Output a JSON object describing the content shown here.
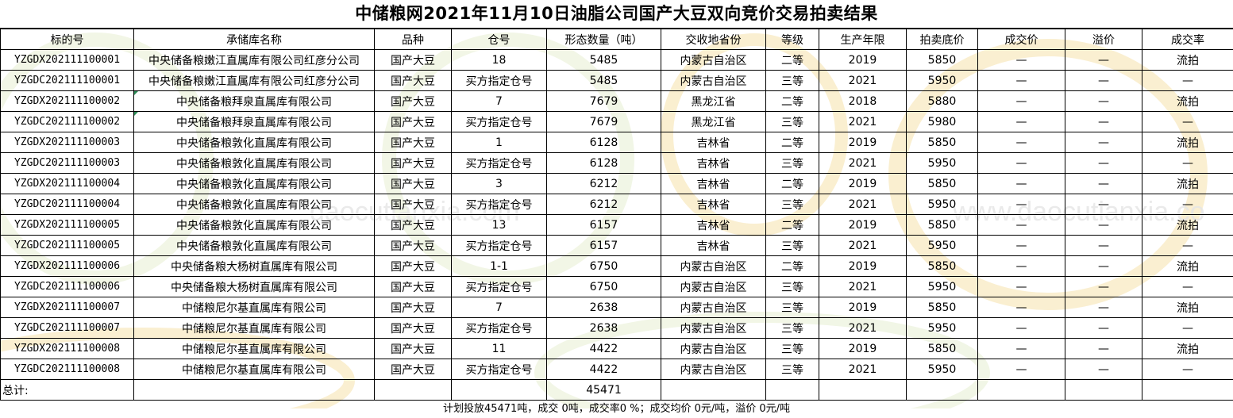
{
  "title": "中储粮网2021年11月10日油脂公司国产大豆双向竞价交易拍卖结果",
  "watermark": {
    "text_left": "daocutianxia.com",
    "text_right": "www.daocutianxia.co",
    "colors": [
      "#f5d98a",
      "#cfe0b0"
    ]
  },
  "headers": [
    "标的号",
    "承储库名称",
    "品种",
    "仓号",
    "形态数量（吨）",
    "交收地省份",
    "等级",
    "生产年限",
    "拍卖底价",
    "成交价",
    "溢价",
    "成交率"
  ],
  "rows": [
    {
      "id": "YZGDX202111100001",
      "depot": "中央储备粮嫩江直属库有限公司红彦分公司",
      "variety": "国产大豆",
      "bin": "18",
      "qty": "5485",
      "province": "内蒙古自治区",
      "grade": "二等",
      "year": "2019",
      "floor": "5850",
      "deal": "—",
      "premium": "—",
      "rate": "流拍"
    },
    {
      "id": "YZGDC202111100001",
      "depot": "中央储备粮嫩江直属库有限公司红彦分公司",
      "variety": "国产大豆",
      "bin": "买方指定仓号",
      "qty": "5485",
      "province": "内蒙古自治区",
      "grade": "三等",
      "year": "2021",
      "floor": "5950",
      "deal": "—",
      "premium": "—",
      "rate": "—"
    },
    {
      "id": "YZGDX202111100002",
      "depot": "中央储备粮拜泉直属库有限公司",
      "variety": "国产大豆",
      "bin": "7",
      "qty": "7679",
      "province": "黑龙江省",
      "grade": "二等",
      "year": "2018",
      "floor": "5880",
      "deal": "—",
      "premium": "—",
      "rate": "流拍"
    },
    {
      "id": "YZGDC202111100002",
      "depot": "中央储备粮拜泉直属库有限公司",
      "variety": "国产大豆",
      "bin": "买方指定仓号",
      "qty": "7679",
      "province": "黑龙江省",
      "grade": "三等",
      "year": "2021",
      "floor": "5980",
      "deal": "—",
      "premium": "—",
      "rate": "—"
    },
    {
      "id": "YZGDX202111100003",
      "depot": "中央储备粮敦化直属库有限公司",
      "variety": "国产大豆",
      "bin": "1",
      "qty": "6128",
      "province": "吉林省",
      "grade": "二等",
      "year": "2019",
      "floor": "5850",
      "deal": "—",
      "premium": "—",
      "rate": "流拍"
    },
    {
      "id": "YZGDC202111100003",
      "depot": "中央储备粮敦化直属库有限公司",
      "variety": "国产大豆",
      "bin": "买方指定仓号",
      "qty": "6128",
      "province": "吉林省",
      "grade": "三等",
      "year": "2021",
      "floor": "5950",
      "deal": "—",
      "premium": "—",
      "rate": "—"
    },
    {
      "id": "YZGDX202111100004",
      "depot": "中央储备粮敦化直属库有限公司",
      "variety": "国产大豆",
      "bin": "3",
      "qty": "6212",
      "province": "吉林省",
      "grade": "二等",
      "year": "2019",
      "floor": "5850",
      "deal": "—",
      "premium": "—",
      "rate": "流拍"
    },
    {
      "id": "YZGDC202111100004",
      "depot": "中央储备粮敦化直属库有限公司",
      "variety": "国产大豆",
      "bin": "买方指定仓号",
      "qty": "6212",
      "province": "吉林省",
      "grade": "三等",
      "year": "2021",
      "floor": "5950",
      "deal": "—",
      "premium": "—",
      "rate": "—"
    },
    {
      "id": "YZGDX202111100005",
      "depot": "中央储备粮敦化直属库有限公司",
      "variety": "国产大豆",
      "bin": "13",
      "qty": "6157",
      "province": "吉林省",
      "grade": "二等",
      "year": "2019",
      "floor": "5850",
      "deal": "—",
      "premium": "—",
      "rate": "流拍"
    },
    {
      "id": "YZGDC202111100005",
      "depot": "中央储备粮敦化直属库有限公司",
      "variety": "国产大豆",
      "bin": "买方指定仓号",
      "qty": "6157",
      "province": "吉林省",
      "grade": "三等",
      "year": "2021",
      "floor": "5950",
      "deal": "—",
      "premium": "—",
      "rate": "—"
    },
    {
      "id": "YZGDX202111100006",
      "depot": "中央储备粮大杨树直属库有限公司",
      "variety": "国产大豆",
      "bin": "1-1",
      "qty": "6750",
      "province": "内蒙古自治区",
      "grade": "二等",
      "year": "2019",
      "floor": "5850",
      "deal": "—",
      "premium": "—",
      "rate": "流拍"
    },
    {
      "id": "YZGDC202111100006",
      "depot": "中央储备粮大杨树直属库有限公司",
      "variety": "国产大豆",
      "bin": "买方指定仓号",
      "qty": "6750",
      "province": "内蒙古自治区",
      "grade": "三等",
      "year": "2021",
      "floor": "5950",
      "deal": "—",
      "premium": "—",
      "rate": "—"
    },
    {
      "id": "YZGDX202111100007",
      "depot": "中储粮尼尔基直属库有限公司",
      "variety": "国产大豆",
      "bin": "7",
      "qty": "2638",
      "province": "内蒙古自治区",
      "grade": "三等",
      "year": "2019",
      "floor": "5850",
      "deal": "—",
      "premium": "—",
      "rate": "流拍"
    },
    {
      "id": "YZGDC202111100007",
      "depot": "中储粮尼尔基直属库有限公司",
      "variety": "国产大豆",
      "bin": "买方指定仓号",
      "qty": "2638",
      "province": "内蒙古自治区",
      "grade": "三等",
      "year": "2021",
      "floor": "5950",
      "deal": "—",
      "premium": "—",
      "rate": "—"
    },
    {
      "id": "YZGDX202111100008",
      "depot": "中储粮尼尔基直属库有限公司",
      "variety": "国产大豆",
      "bin": "11",
      "qty": "4422",
      "province": "内蒙古自治区",
      "grade": "三等",
      "year": "2019",
      "floor": "5850",
      "deal": "—",
      "premium": "—",
      "rate": "流拍"
    },
    {
      "id": "YZGDC202111100008",
      "depot": "中储粮尼尔基直属库有限公司",
      "variety": "国产大豆",
      "bin": "买方指定仓号",
      "qty": "4422",
      "province": "内蒙古自治区",
      "grade": "三等",
      "year": "2021",
      "floor": "5950",
      "deal": "—",
      "premium": "—",
      "rate": "—"
    }
  ],
  "total": {
    "label": "总计:",
    "qty": "45471"
  },
  "summary": "计划投放45471吨，成交 0吨，成交率0 %；成交均价 0元/吨，溢价 0元/吨"
}
